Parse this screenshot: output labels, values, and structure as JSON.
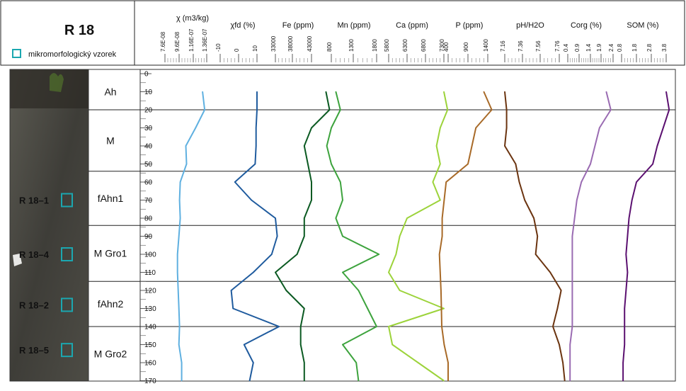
{
  "profile_id": "R 18",
  "legend_label": "mikromorfologický vzorek",
  "legend_color": "#1ba7b0",
  "depth_ticks": [
    0,
    10,
    20,
    30,
    40,
    50,
    60,
    70,
    80,
    90,
    100,
    110,
    120,
    130,
    140,
    150,
    160,
    170
  ],
  "horizons": [
    {
      "name": "Ah",
      "top": 0,
      "bottom": 20
    },
    {
      "name": "M",
      "top": 20,
      "bottom": 54
    },
    {
      "name": "fAhn1",
      "top": 54,
      "bottom": 84
    },
    {
      "name": "M Gro1",
      "top": 84,
      "bottom": 115
    },
    {
      "name": "fAhn2",
      "top": 115,
      "bottom": 140
    },
    {
      "name": "M Gro2",
      "top": 140,
      "bottom": 170
    }
  ],
  "boundaries": [
    20,
    54,
    84,
    115,
    140
  ],
  "samples": [
    {
      "label": "R 18–1",
      "depth": 70
    },
    {
      "label": "R 18–4",
      "depth": 100
    },
    {
      "label": "R 18–2",
      "depth": 128
    },
    {
      "label": "R 18–5",
      "depth": 153
    }
  ],
  "chart_data": {
    "type": "line",
    "orientation": "depth-profile",
    "y_axis": {
      "label": "",
      "range": [
        0,
        170
      ],
      "inverted": true
    },
    "depth": [
      10,
      20,
      30,
      40,
      50,
      60,
      70,
      80,
      90,
      100,
      110,
      120,
      130,
      140,
      150,
      160,
      170
    ],
    "series": [
      {
        "name": "χ (m3/kg)",
        "color": "#5fb0e0",
        "ticks": [
          "7.6E-08",
          "9.6E-08",
          "1.16E-07",
          "1.36E-07"
        ],
        "values": [
          1.3e-07,
          1.33e-07,
          1.2e-07,
          1.06e-07,
          1.07e-07,
          9.8e-08,
          9.7e-08,
          9.8e-08,
          9.6e-08,
          9.4e-08,
          9.4e-08,
          9.5e-08,
          9.6e-08,
          9.7e-08,
          9.6e-08,
          1e-07,
          1e-07
        ]
      },
      {
        "name": "χfd (%)",
        "color": "#1f5b9e",
        "ticks": [
          "-10",
          "0",
          "10"
        ],
        "values": [
          10,
          10,
          9.5,
          9.5,
          9,
          -2,
          7,
          20,
          21,
          18,
          8,
          -4,
          -3,
          22,
          3,
          8,
          6
        ]
      },
      {
        "name": "Fe (ppm)",
        "color": "#0b5a22",
        "ticks": [
          "33000",
          "38000",
          "43000"
        ],
        "values": [
          47000,
          48000,
          43000,
          41000,
          42000,
          43000,
          43000,
          41000,
          41000,
          39000,
          33000,
          36000,
          41000,
          40000,
          40000,
          41000,
          41000
        ]
      },
      {
        "name": "Mn (ppm)",
        "color": "#3da33d",
        "ticks": [
          "800",
          "1300",
          "1800"
        ],
        "values": [
          900,
          1000,
          800,
          700,
          800,
          1000,
          1050,
          900,
          1050,
          1850,
          1050,
          1400,
          1600,
          1800,
          1050,
          1350,
          1400
        ]
      },
      {
        "name": "Ca (ppm)",
        "color": "#9cd33a",
        "ticks": [
          "5800",
          "6300",
          "6800",
          "7300"
        ],
        "values": [
          7300,
          7400,
          7200,
          7100,
          7200,
          7000,
          7200,
          6300,
          6100,
          6000,
          5800,
          6100,
          7300,
          5800,
          5900,
          6600,
          7300
        ]
      },
      {
        "name": "P (ppm)",
        "color": "#a86a28",
        "ticks": [
          "400",
          "900",
          "1400"
        ],
        "values": [
          1300,
          1500,
          1100,
          1000,
          900,
          350,
          300,
          250,
          250,
          180,
          200,
          220,
          230,
          240,
          300,
          400,
          400
        ]
      },
      {
        "name": "pH/H2O",
        "color": "#6b3410",
        "ticks": [
          "7.16",
          "7.36",
          "7.56",
          "7.76"
        ],
        "values": [
          7.16,
          7.18,
          7.18,
          7.16,
          7.28,
          7.32,
          7.38,
          7.48,
          7.52,
          7.5,
          7.66,
          7.78,
          7.74,
          7.69,
          7.76,
          7.8,
          7.82
        ]
      },
      {
        "name": "Corg (%)",
        "color": "#9a6bb2",
        "ticks": [
          "0.4",
          "0.9",
          "1.4",
          "1.9",
          "2.4"
        ],
        "values": [
          2.1,
          2.3,
          1.8,
          1.6,
          1.4,
          1.0,
          0.8,
          0.7,
          0.6,
          0.6,
          0.6,
          0.6,
          0.6,
          0.6,
          0.5,
          0.5,
          0.5
        ]
      },
      {
        "name": "SOM (%)",
        "color": "#5b1070",
        "ticks": [
          "0.8",
          "1.8",
          "2.8",
          "3.8"
        ],
        "values": [
          3.8,
          4.0,
          3.6,
          3.2,
          2.9,
          1.8,
          1.5,
          1.3,
          1.2,
          1.1,
          1.2,
          1.1,
          1.0,
          1.0,
          1.0,
          0.9,
          0.9
        ]
      }
    ]
  }
}
